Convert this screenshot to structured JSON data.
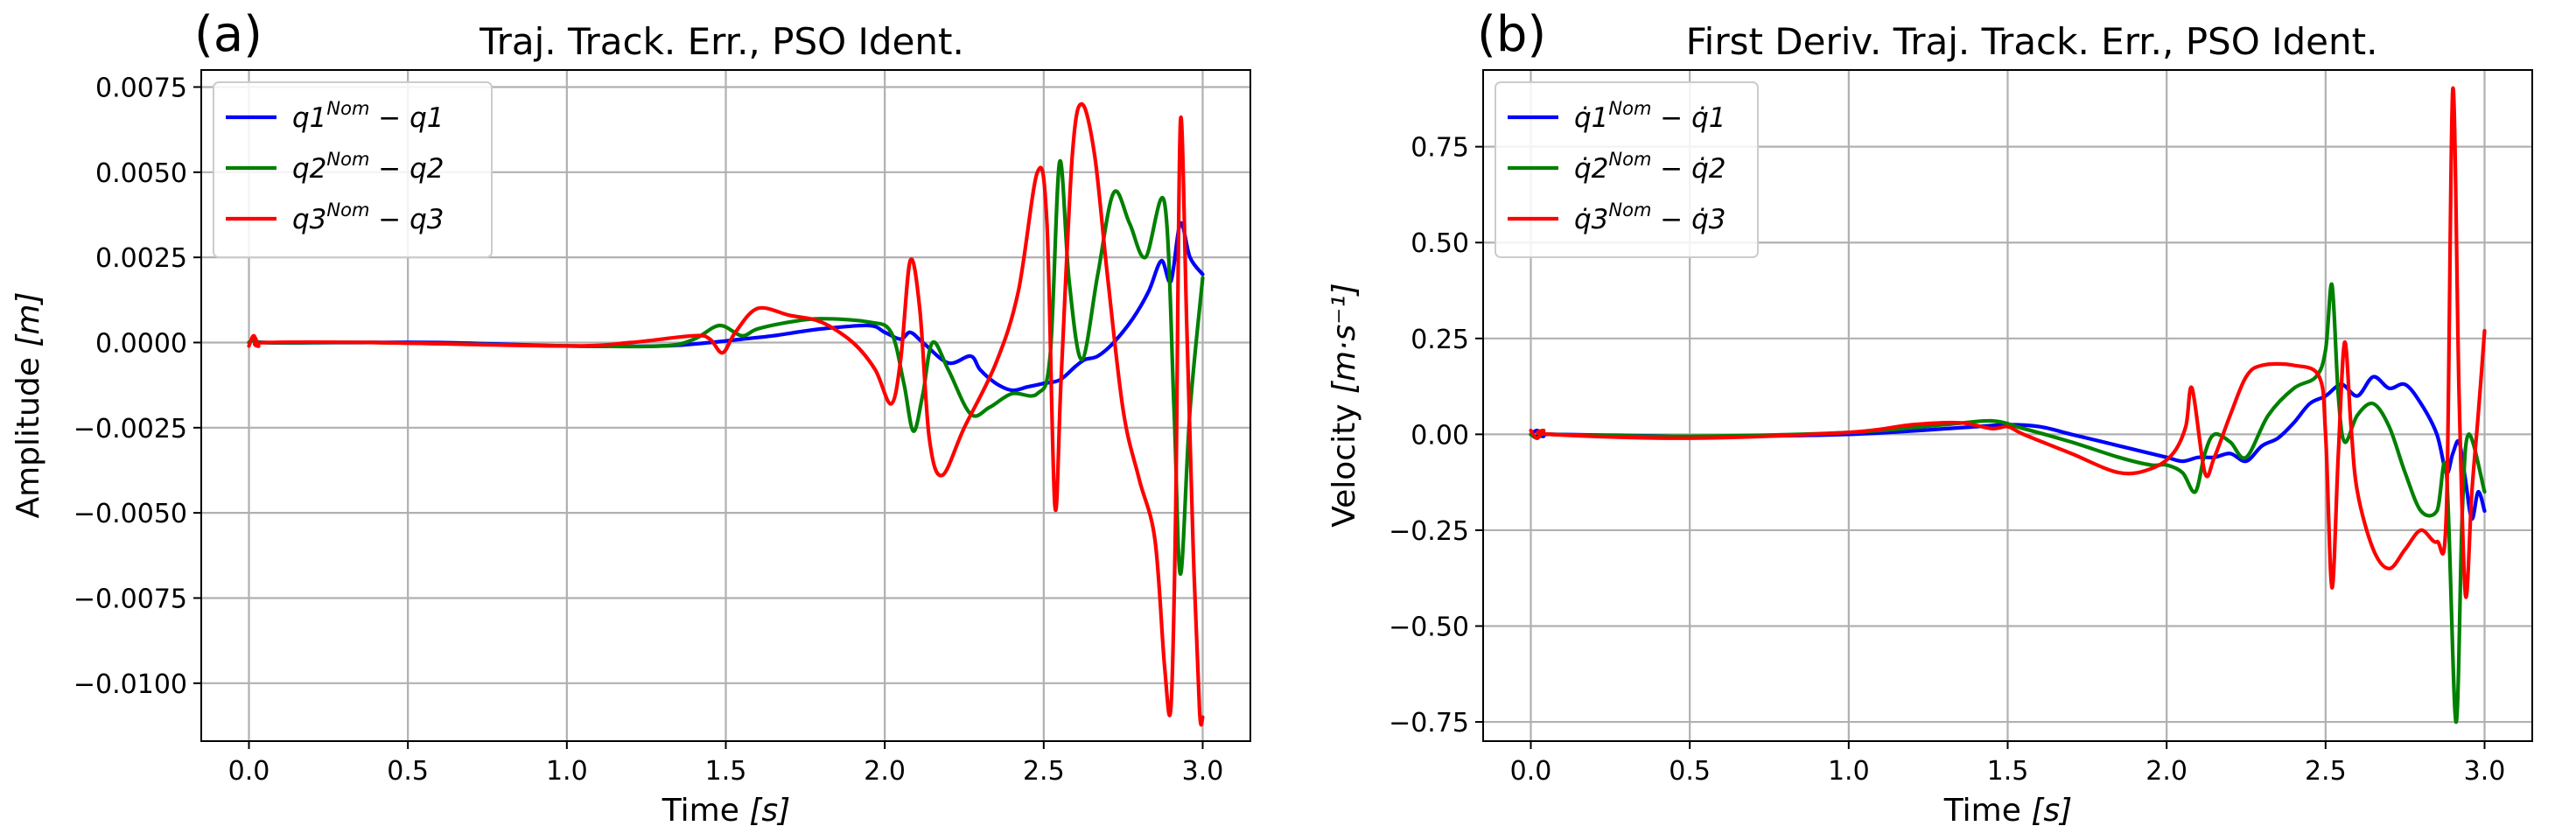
{
  "chart_data": [
    {
      "type": "line",
      "panel_tag": "(a)",
      "title": "Traj. Track. Err., PSO Ident.",
      "xlabel_main": "Time ",
      "xlabel_unit": "[s]",
      "ylabel_main": "Amplitude ",
      "ylabel_unit": "[m]",
      "xlim": [
        -0.15,
        3.15
      ],
      "ylim": [
        -0.0117,
        0.008
      ],
      "xticks": [
        0.0,
        0.5,
        1.0,
        1.5,
        2.0,
        2.5,
        3.0
      ],
      "xtick_labels": [
        "0.0",
        "0.5",
        "1.0",
        "1.5",
        "2.0",
        "2.5",
        "3.0"
      ],
      "yticks": [
        -0.01,
        -0.0075,
        -0.005,
        -0.0025,
        0.0,
        0.0025,
        0.005,
        0.0075
      ],
      "ytick_labels": [
        "−0.0100",
        "−0.0075",
        "−0.0050",
        "−0.0025",
        "0.0000",
        "0.0025",
        "0.0050",
        "0.0075"
      ],
      "grid": true,
      "legend_position": "upper-left",
      "series": [
        {
          "name": "q1^Nom − q1",
          "legend": {
            "base": "q1",
            "sup": "Nom",
            "tail": " − q1"
          },
          "color": "#0000ff",
          "points": [
            [
              0,
              0
            ],
            [
              0.02,
              0.0001
            ],
            [
              0.05,
              0.0
            ],
            [
              0.3,
              0.0
            ],
            [
              0.6,
              0.0
            ],
            [
              1.0,
              -0.0001
            ],
            [
              1.3,
              -0.0001
            ],
            [
              1.45,
              0.0
            ],
            [
              1.55,
              0.0001
            ],
            [
              1.65,
              0.0002
            ],
            [
              1.8,
              0.0004
            ],
            [
              1.95,
              0.0005
            ],
            [
              2.0,
              0.0003
            ],
            [
              2.05,
              0.0001
            ],
            [
              2.08,
              0.0003
            ],
            [
              2.12,
              0.0
            ],
            [
              2.2,
              -0.0006
            ],
            [
              2.27,
              -0.0004
            ],
            [
              2.3,
              -0.0008
            ],
            [
              2.35,
              -0.0012
            ],
            [
              2.4,
              -0.0014
            ],
            [
              2.45,
              -0.0013
            ],
            [
              2.5,
              -0.0012
            ],
            [
              2.55,
              -0.0011
            ],
            [
              2.6,
              -0.0007
            ],
            [
              2.63,
              -0.0005
            ],
            [
              2.67,
              -0.0004
            ],
            [
              2.72,
              0.0
            ],
            [
              2.78,
              0.0007
            ],
            [
              2.83,
              0.0015
            ],
            [
              2.87,
              0.0024
            ],
            [
              2.9,
              0.0018
            ],
            [
              2.93,
              0.0035
            ],
            [
              2.96,
              0.0025
            ],
            [
              3.0,
              0.002
            ]
          ]
        },
        {
          "name": "q2^Nom − q2",
          "legend": {
            "base": "q2",
            "sup": "Nom",
            "tail": " − q2"
          },
          "color": "#008000",
          "points": [
            [
              0,
              0
            ],
            [
              0.02,
              0.0001
            ],
            [
              0.05,
              0.0
            ],
            [
              0.4,
              0.0
            ],
            [
              1.0,
              -0.0001
            ],
            [
              1.3,
              -0.0001
            ],
            [
              1.4,
              0.0001
            ],
            [
              1.48,
              0.0005
            ],
            [
              1.55,
              0.0002
            ],
            [
              1.6,
              0.0004
            ],
            [
              1.7,
              0.0006
            ],
            [
              1.8,
              0.0007
            ],
            [
              1.95,
              0.0006
            ],
            [
              2.02,
              0.0003
            ],
            [
              2.06,
              -0.0012
            ],
            [
              2.09,
              -0.0026
            ],
            [
              2.12,
              -0.0015
            ],
            [
              2.15,
              0.0
            ],
            [
              2.2,
              -0.0008
            ],
            [
              2.27,
              -0.0021
            ],
            [
              2.33,
              -0.0019
            ],
            [
              2.4,
              -0.0015
            ],
            [
              2.48,
              -0.0015
            ],
            [
              2.52,
              -0.0004
            ],
            [
              2.55,
              0.0053
            ],
            [
              2.58,
              0.0018
            ],
            [
              2.62,
              -0.0005
            ],
            [
              2.67,
              0.002
            ],
            [
              2.72,
              0.0044
            ],
            [
              2.77,
              0.0035
            ],
            [
              2.82,
              0.0025
            ],
            [
              2.88,
              0.0041
            ],
            [
              2.91,
              -0.002
            ],
            [
              2.93,
              -0.0068
            ],
            [
              2.96,
              -0.002
            ],
            [
              3.0,
              0.0019
            ]
          ]
        },
        {
          "name": "q3^Nom − q3",
          "legend": {
            "base": "q3",
            "sup": "Nom",
            "tail": " − q3"
          },
          "color": "#ff0000",
          "points": [
            [
              0,
              -0.0001
            ],
            [
              0.015,
              0.0002
            ],
            [
              0.03,
              -0.0001
            ],
            [
              0.05,
              0.0
            ],
            [
              0.4,
              0.0
            ],
            [
              1.0,
              -0.0001
            ],
            [
              1.2,
              0.0
            ],
            [
              1.4,
              0.0002
            ],
            [
              1.45,
              0.0001
            ],
            [
              1.49,
              -0.0003
            ],
            [
              1.53,
              0.0003
            ],
            [
              1.6,
              0.001
            ],
            [
              1.7,
              0.0008
            ],
            [
              1.8,
              0.0006
            ],
            [
              1.9,
              0.0
            ],
            [
              1.97,
              -0.0008
            ],
            [
              2.02,
              -0.0018
            ],
            [
              2.05,
              -0.0005
            ],
            [
              2.08,
              0.0024
            ],
            [
              2.11,
              0.001
            ],
            [
              2.14,
              -0.0028
            ],
            [
              2.18,
              -0.0039
            ],
            [
              2.25,
              -0.0025
            ],
            [
              2.35,
              -0.0006
            ],
            [
              2.42,
              0.0015
            ],
            [
              2.48,
              0.005
            ],
            [
              2.51,
              0.0035
            ],
            [
              2.535,
              -0.0048
            ],
            [
              2.555,
              -0.001
            ],
            [
              2.59,
              0.0055
            ],
            [
              2.62,
              0.007
            ],
            [
              2.66,
              0.0055
            ],
            [
              2.7,
              0.002
            ],
            [
              2.75,
              -0.002
            ],
            [
              2.8,
              -0.004
            ],
            [
              2.85,
              -0.0058
            ],
            [
              2.88,
              -0.0095
            ],
            [
              2.9,
              -0.0107
            ],
            [
              2.915,
              -0.005
            ],
            [
              2.93,
              0.0065
            ],
            [
              2.95,
              0.0005
            ],
            [
              2.97,
              -0.006
            ],
            [
              2.99,
              -0.0108
            ],
            [
              3.0,
              -0.011
            ]
          ]
        }
      ]
    },
    {
      "type": "line",
      "panel_tag": "(b)",
      "title": "First Deriv. Traj. Track. Err., PSO Ident.",
      "xlabel_main": "Time ",
      "xlabel_unit": "[s]",
      "ylabel_main": "Velocity ",
      "ylabel_unit": "[m·s⁻¹]",
      "xlim": [
        -0.15,
        3.15
      ],
      "ylim": [
        -0.8,
        0.95
      ],
      "xticks": [
        0.0,
        0.5,
        1.0,
        1.5,
        2.0,
        2.5,
        3.0
      ],
      "xtick_labels": [
        "0.0",
        "0.5",
        "1.0",
        "1.5",
        "2.0",
        "2.5",
        "3.0"
      ],
      "yticks": [
        -0.75,
        -0.5,
        -0.25,
        0.0,
        0.25,
        0.5,
        0.75
      ],
      "ytick_labels": [
        "−0.75",
        "−0.50",
        "−0.25",
        "0.00",
        "0.25",
        "0.50",
        "0.75"
      ],
      "grid": true,
      "legend_position": "upper-left",
      "series": [
        {
          "name": "q̇1^Nom − q̇1",
          "legend": {
            "base": "q̇1",
            "sup": "Nom",
            "tail": " − q̇1"
          },
          "color": "#0000ff",
          "points": [
            [
              0,
              0
            ],
            [
              0.02,
              0.01
            ],
            [
              0.04,
              -0.005
            ],
            [
              0.06,
              0.0
            ],
            [
              0.5,
              -0.005
            ],
            [
              1.0,
              0.0
            ],
            [
              1.4,
              0.02
            ],
            [
              1.5,
              0.025
            ],
            [
              1.6,
              0.02
            ],
            [
              1.7,
              0.0
            ],
            [
              1.8,
              -0.02
            ],
            [
              1.9,
              -0.04
            ],
            [
              2.0,
              -0.06
            ],
            [
              2.05,
              -0.07
            ],
            [
              2.1,
              -0.06
            ],
            [
              2.15,
              -0.06
            ],
            [
              2.2,
              -0.05
            ],
            [
              2.25,
              -0.07
            ],
            [
              2.3,
              -0.03
            ],
            [
              2.35,
              -0.01
            ],
            [
              2.4,
              0.03
            ],
            [
              2.45,
              0.08
            ],
            [
              2.5,
              0.1
            ],
            [
              2.55,
              0.13
            ],
            [
              2.6,
              0.1
            ],
            [
              2.65,
              0.15
            ],
            [
              2.7,
              0.12
            ],
            [
              2.75,
              0.13
            ],
            [
              2.8,
              0.08
            ],
            [
              2.85,
              0.0
            ],
            [
              2.88,
              -0.1
            ],
            [
              2.9,
              -0.05
            ],
            [
              2.92,
              -0.02
            ],
            [
              2.94,
              -0.12
            ],
            [
              2.96,
              -0.22
            ],
            [
              2.98,
              -0.15
            ],
            [
              3.0,
              -0.2
            ]
          ]
        },
        {
          "name": "q̇2^Nom − q̇2",
          "legend": {
            "base": "q̇2",
            "sup": "Nom",
            "tail": " − q̇2"
          },
          "color": "#008000",
          "points": [
            [
              0,
              0
            ],
            [
              0.02,
              -0.01
            ],
            [
              0.04,
              0.005
            ],
            [
              0.06,
              0.0
            ],
            [
              0.5,
              -0.005
            ],
            [
              1.0,
              0.005
            ],
            [
              1.3,
              0.025
            ],
            [
              1.45,
              0.035
            ],
            [
              1.55,
              0.015
            ],
            [
              1.7,
              -0.02
            ],
            [
              1.85,
              -0.06
            ],
            [
              1.95,
              -0.08
            ],
            [
              2.0,
              -0.08
            ],
            [
              2.05,
              -0.1
            ],
            [
              2.09,
              -0.15
            ],
            [
              2.12,
              -0.05
            ],
            [
              2.15,
              0.0
            ],
            [
              2.2,
              -0.02
            ],
            [
              2.25,
              -0.06
            ],
            [
              2.32,
              0.05
            ],
            [
              2.4,
              0.12
            ],
            [
              2.47,
              0.15
            ],
            [
              2.5,
              0.22
            ],
            [
              2.52,
              0.39
            ],
            [
              2.54,
              0.1
            ],
            [
              2.56,
              -0.02
            ],
            [
              2.6,
              0.05
            ],
            [
              2.65,
              0.08
            ],
            [
              2.7,
              0.02
            ],
            [
              2.75,
              -0.1
            ],
            [
              2.8,
              -0.2
            ],
            [
              2.85,
              -0.2
            ],
            [
              2.88,
              -0.1
            ],
            [
              2.91,
              -0.75
            ],
            [
              2.93,
              -0.2
            ],
            [
              2.95,
              0.0
            ],
            [
              3.0,
              -0.15
            ]
          ]
        },
        {
          "name": "q̇3^Nom − q̇3",
          "legend": {
            "base": "q̇3",
            "sup": "Nom",
            "tail": " − q̇3"
          },
          "color": "#ff0000",
          "points": [
            [
              0,
              0.01
            ],
            [
              0.02,
              -0.01
            ],
            [
              0.04,
              0.01
            ],
            [
              0.06,
              0.0
            ],
            [
              0.5,
              -0.01
            ],
            [
              1.0,
              0.005
            ],
            [
              1.2,
              0.025
            ],
            [
              1.35,
              0.03
            ],
            [
              1.45,
              0.015
            ],
            [
              1.5,
              0.02
            ],
            [
              1.55,
              0.0
            ],
            [
              1.7,
              -0.05
            ],
            [
              1.85,
              -0.1
            ],
            [
              1.95,
              -0.09
            ],
            [
              2.02,
              -0.05
            ],
            [
              2.06,
              0.02
            ],
            [
              2.08,
              0.12
            ],
            [
              2.12,
              -0.1
            ],
            [
              2.15,
              -0.06
            ],
            [
              2.2,
              0.05
            ],
            [
              2.25,
              0.15
            ],
            [
              2.3,
              0.18
            ],
            [
              2.4,
              0.18
            ],
            [
              2.48,
              0.15
            ],
            [
              2.5,
              0.0
            ],
            [
              2.52,
              -0.4
            ],
            [
              2.54,
              -0.05
            ],
            [
              2.56,
              0.24
            ],
            [
              2.58,
              0.02
            ],
            [
              2.6,
              -0.15
            ],
            [
              2.65,
              -0.3
            ],
            [
              2.7,
              -0.35
            ],
            [
              2.75,
              -0.3
            ],
            [
              2.8,
              -0.25
            ],
            [
              2.85,
              -0.28
            ],
            [
              2.88,
              -0.2
            ],
            [
              2.9,
              0.9
            ],
            [
              2.92,
              0.1
            ],
            [
              2.94,
              -0.42
            ],
            [
              2.96,
              -0.15
            ],
            [
              2.98,
              0.05
            ],
            [
              3.0,
              0.27
            ]
          ]
        }
      ]
    }
  ]
}
